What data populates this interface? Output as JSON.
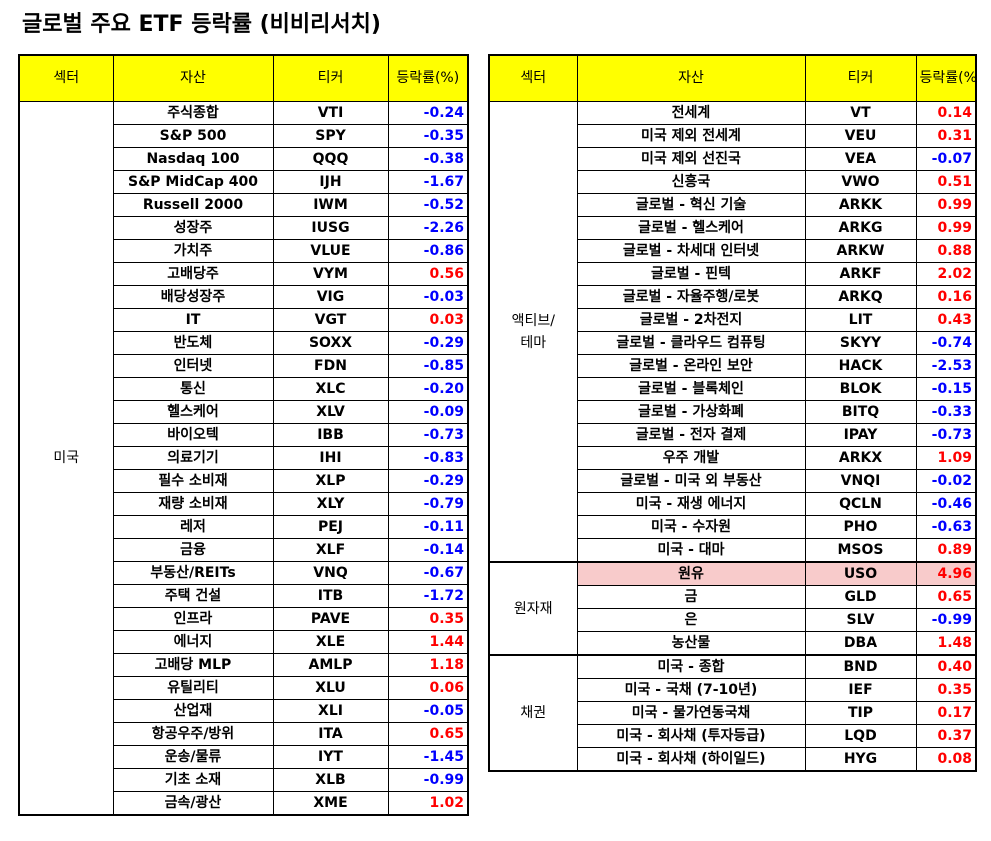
{
  "title": "글로벌 주요 ETF 등락률 (비비리서치)",
  "headers": {
    "sector": "섹터",
    "asset": "자산",
    "ticker": "티커",
    "change": "등락률(%)"
  },
  "left": {
    "sector": "미국",
    "rows": [
      {
        "asset": "주식종합",
        "ticker": "VTI",
        "change": "-0.24"
      },
      {
        "asset": "S&P 500",
        "ticker": "SPY",
        "change": "-0.35"
      },
      {
        "asset": "Nasdaq 100",
        "ticker": "QQQ",
        "change": "-0.38"
      },
      {
        "asset": "S&P MidCap 400",
        "ticker": "IJH",
        "change": "-1.67"
      },
      {
        "asset": "Russell 2000",
        "ticker": "IWM",
        "change": "-0.52"
      },
      {
        "asset": "성장주",
        "ticker": "IUSG",
        "change": "-2.26"
      },
      {
        "asset": "가치주",
        "ticker": "VLUE",
        "change": "-0.86"
      },
      {
        "asset": "고배당주",
        "ticker": "VYM",
        "change": "0.56"
      },
      {
        "asset": "배당성장주",
        "ticker": "VIG",
        "change": "-0.03"
      },
      {
        "asset": "IT",
        "ticker": "VGT",
        "change": "0.03"
      },
      {
        "asset": "반도체",
        "ticker": "SOXX",
        "change": "-0.29"
      },
      {
        "asset": "인터넷",
        "ticker": "FDN",
        "change": "-0.85"
      },
      {
        "asset": "통신",
        "ticker": "XLC",
        "change": "-0.20"
      },
      {
        "asset": "헬스케어",
        "ticker": "XLV",
        "change": "-0.09"
      },
      {
        "asset": "바이오텍",
        "ticker": "IBB",
        "change": "-0.73"
      },
      {
        "asset": "의료기기",
        "ticker": "IHI",
        "change": "-0.83"
      },
      {
        "asset": "필수 소비재",
        "ticker": "XLP",
        "change": "-0.29"
      },
      {
        "asset": "재량 소비재",
        "ticker": "XLY",
        "change": "-0.79"
      },
      {
        "asset": "레저",
        "ticker": "PEJ",
        "change": "-0.11"
      },
      {
        "asset": "금융",
        "ticker": "XLF",
        "change": "-0.14"
      },
      {
        "asset": "부동산/REITs",
        "ticker": "VNQ",
        "change": "-0.67"
      },
      {
        "asset": "주택 건설",
        "ticker": "ITB",
        "change": "-1.72"
      },
      {
        "asset": "인프라",
        "ticker": "PAVE",
        "change": "0.35"
      },
      {
        "asset": "에너지",
        "ticker": "XLE",
        "change": "1.44"
      },
      {
        "asset": "고배당 MLP",
        "ticker": "AMLP",
        "change": "1.18"
      },
      {
        "asset": "유틸리티",
        "ticker": "XLU",
        "change": "0.06"
      },
      {
        "asset": "산업재",
        "ticker": "XLI",
        "change": "-0.05"
      },
      {
        "asset": "항공우주/방위",
        "ticker": "ITA",
        "change": "0.65"
      },
      {
        "asset": "운송/물류",
        "ticker": "IYT",
        "change": "-1.45"
      },
      {
        "asset": "기초 소재",
        "ticker": "XLB",
        "change": "-0.99"
      },
      {
        "asset": "금속/광산",
        "ticker": "XME",
        "change": "1.02"
      }
    ]
  },
  "right": {
    "groups": [
      {
        "sector": "액티브/\n테마",
        "rows": [
          {
            "asset": "전세계",
            "ticker": "VT",
            "change": "0.14"
          },
          {
            "asset": "미국 제외 전세계",
            "ticker": "VEU",
            "change": "0.31"
          },
          {
            "asset": "미국 제외 선진국",
            "ticker": "VEA",
            "change": "-0.07"
          },
          {
            "asset": "신흥국",
            "ticker": "VWO",
            "change": "0.51"
          },
          {
            "asset": "글로벌 - 혁신 기술",
            "ticker": "ARKK",
            "change": "0.99"
          },
          {
            "asset": "글로벌 - 헬스케어",
            "ticker": "ARKG",
            "change": "0.99"
          },
          {
            "asset": "글로벌 - 차세대 인터넷",
            "ticker": "ARKW",
            "change": "0.88"
          },
          {
            "asset": "글로벌 - 핀텍",
            "ticker": "ARKF",
            "change": "2.02"
          },
          {
            "asset": "글로벌 - 자율주행/로봇",
            "ticker": "ARKQ",
            "change": "0.16"
          },
          {
            "asset": "글로벌 - 2차전지",
            "ticker": "LIT",
            "change": "0.43"
          },
          {
            "asset": "글로벌 - 클라우드 컴퓨팅",
            "ticker": "SKYY",
            "change": "-0.74"
          },
          {
            "asset": "글로벌 - 온라인 보안",
            "ticker": "HACK",
            "change": "-2.53"
          },
          {
            "asset": "글로벌 - 블록체인",
            "ticker": "BLOK",
            "change": "-0.15"
          },
          {
            "asset": "글로벌 - 가상화폐",
            "ticker": "BITQ",
            "change": "-0.33"
          },
          {
            "asset": "글로벌 - 전자 결제",
            "ticker": "IPAY",
            "change": "-0.73"
          },
          {
            "asset": "우주 개발",
            "ticker": "ARKX",
            "change": "1.09"
          },
          {
            "asset": "글로벌 - 미국 외 부동산",
            "ticker": "VNQI",
            "change": "-0.02"
          },
          {
            "asset": "미국 - 재생 에너지",
            "ticker": "QCLN",
            "change": "-0.46"
          },
          {
            "asset": "미국 - 수자원",
            "ticker": "PHO",
            "change": "-0.63"
          },
          {
            "asset": "미국 - 대마",
            "ticker": "MSOS",
            "change": "0.89"
          }
        ]
      },
      {
        "sector": "원자재",
        "rows": [
          {
            "asset": "원유",
            "ticker": "USO",
            "change": "4.96",
            "highlight": true
          },
          {
            "asset": "금",
            "ticker": "GLD",
            "change": "0.65"
          },
          {
            "asset": "은",
            "ticker": "SLV",
            "change": "-0.99"
          },
          {
            "asset": "농산물",
            "ticker": "DBA",
            "change": "1.48"
          }
        ]
      },
      {
        "sector": "채권",
        "rows": [
          {
            "asset": "미국 - 종합",
            "ticker": "BND",
            "change": "0.40"
          },
          {
            "asset": "미국 - 국채 (7-10년)",
            "ticker": "IEF",
            "change": "0.35"
          },
          {
            "asset": "미국 - 물가연동국채",
            "ticker": "TIP",
            "change": "0.17"
          },
          {
            "asset": "미국 - 회사채 (투자등급)",
            "ticker": "LQD",
            "change": "0.37"
          },
          {
            "asset": "미국 - 회사채 (하이일드)",
            "ticker": "HYG",
            "change": "0.08"
          }
        ]
      }
    ]
  },
  "colors": {
    "header_bg": "#ffff00",
    "positive": "#ff0000",
    "negative": "#0000ff",
    "highlight": "#f8cbcb"
  }
}
